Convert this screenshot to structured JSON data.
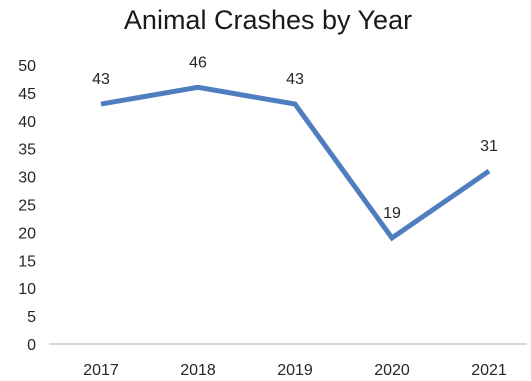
{
  "chart_data": {
    "type": "line",
    "title": "Animal Crashes by Year",
    "categories": [
      "2017",
      "2018",
      "2019",
      "2020",
      "2021"
    ],
    "series": [
      {
        "values": [
          43,
          46,
          43,
          19,
          31
        ]
      }
    ],
    "data_labels": [
      "43",
      "46",
      "43",
      "19",
      "31"
    ],
    "y_ticks": [
      "0",
      "5",
      "10",
      "15",
      "20",
      "25",
      "30",
      "35",
      "40",
      "45",
      "50"
    ],
    "ylim": [
      0,
      50
    ],
    "xlabel": "",
    "ylabel": "",
    "grid": false,
    "legend": "none",
    "line_color": "#4f7ec0"
  }
}
